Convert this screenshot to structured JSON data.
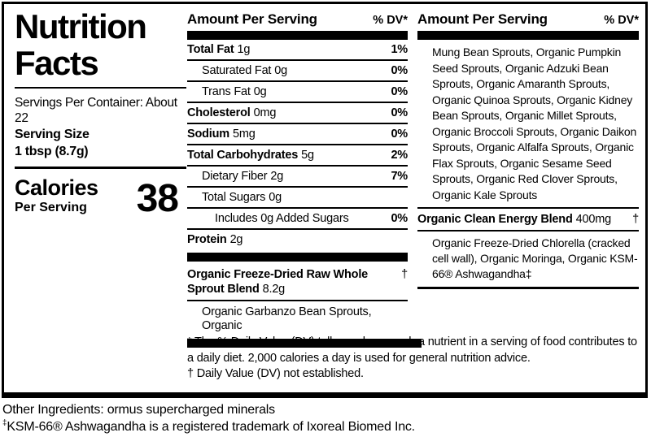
{
  "colors": {
    "ink": "#000000",
    "paper": "#ffffff"
  },
  "left": {
    "title_line1": "Nutrition",
    "title_line2": "Facts",
    "servings_per_container": "Servings Per Container: About 22",
    "serving_size_label": "Serving Size",
    "serving_size_value": "1 tbsp (8.7g)",
    "calories_label": "Calories",
    "calories_sublabel": "Per Serving",
    "calories_value": "38"
  },
  "mid": {
    "header": "Amount Per Serving",
    "dv_header": "% DV*",
    "rows": [
      {
        "name": "Total Fat",
        "amount": "1g",
        "dv": "1%"
      },
      {
        "name": "Saturated Fat",
        "amount": "0g",
        "dv": "0%"
      },
      {
        "name": "Trans Fat",
        "amount": "0g",
        "dv": "0%"
      },
      {
        "name": "Cholesterol",
        "amount": "0mg",
        "dv": "0%"
      },
      {
        "name": "Sodium",
        "amount": "5mg",
        "dv": "0%"
      },
      {
        "name": "Total Carbohydrates",
        "amount": "5g",
        "dv": "2%"
      },
      {
        "name": "Dietary Fiber",
        "amount": "2g",
        "dv": "7%"
      },
      {
        "name": "Total Sugars",
        "amount": "0g",
        "dv": ""
      },
      {
        "name": "Includes 0g Added Sugars",
        "amount": "",
        "dv": "0%"
      },
      {
        "name": "Protein",
        "amount": "2g",
        "dv": ""
      }
    ],
    "sprout_blend": {
      "name": "Organic Freeze-Dried Raw Whole Sprout Blend",
      "amount": "8.2g",
      "dv": "†"
    },
    "sprout_blend_ingredients": "Organic Garbanzo Bean Sprouts, Organic"
  },
  "right": {
    "header": "Amount Per Serving",
    "dv_header": "% DV*",
    "sprout_ingredients": "Mung Bean Sprouts, Organic Pumpkin Seed Sprouts, Organic Adzuki Bean Sprouts, Organic Amaranth Sprouts, Organic Quinoa Sprouts, Organic Kidney Bean Sprouts, Organic Millet Sprouts, Organic Broccoli Sprouts, Organic Daikon Sprouts, Organic Alfalfa Sprouts, Organic Flax Sprouts, Organic Sesame Seed Sprouts, Organic Red Clover Sprouts, Organic Kale Sprouts",
    "energy_blend": {
      "name": "Organic Clean Energy Blend",
      "amount": "400mg",
      "dv": "†"
    },
    "energy_blend_ingredients": "Organic Freeze-Dried Chlorella (cracked cell wall), Organic Moringa, Organic KSM-66® Ashwagandha‡"
  },
  "footnotes": {
    "dv_note": "* The % Daily Value (DV) tells you how much a nutrient in a serving of food contributes to a daily diet. 2,000 calories a day is used for general nutrition advice.",
    "not_established_note": "† Daily Value (DV) not established."
  },
  "bottom": {
    "other_ingredients": "Other Ingredients: ormus supercharged minerals",
    "trademark_mark": "‡",
    "trademark_text": "KSM-66® Ashwagandha is a registered trademark of Ixoreal Biomed Inc."
  }
}
